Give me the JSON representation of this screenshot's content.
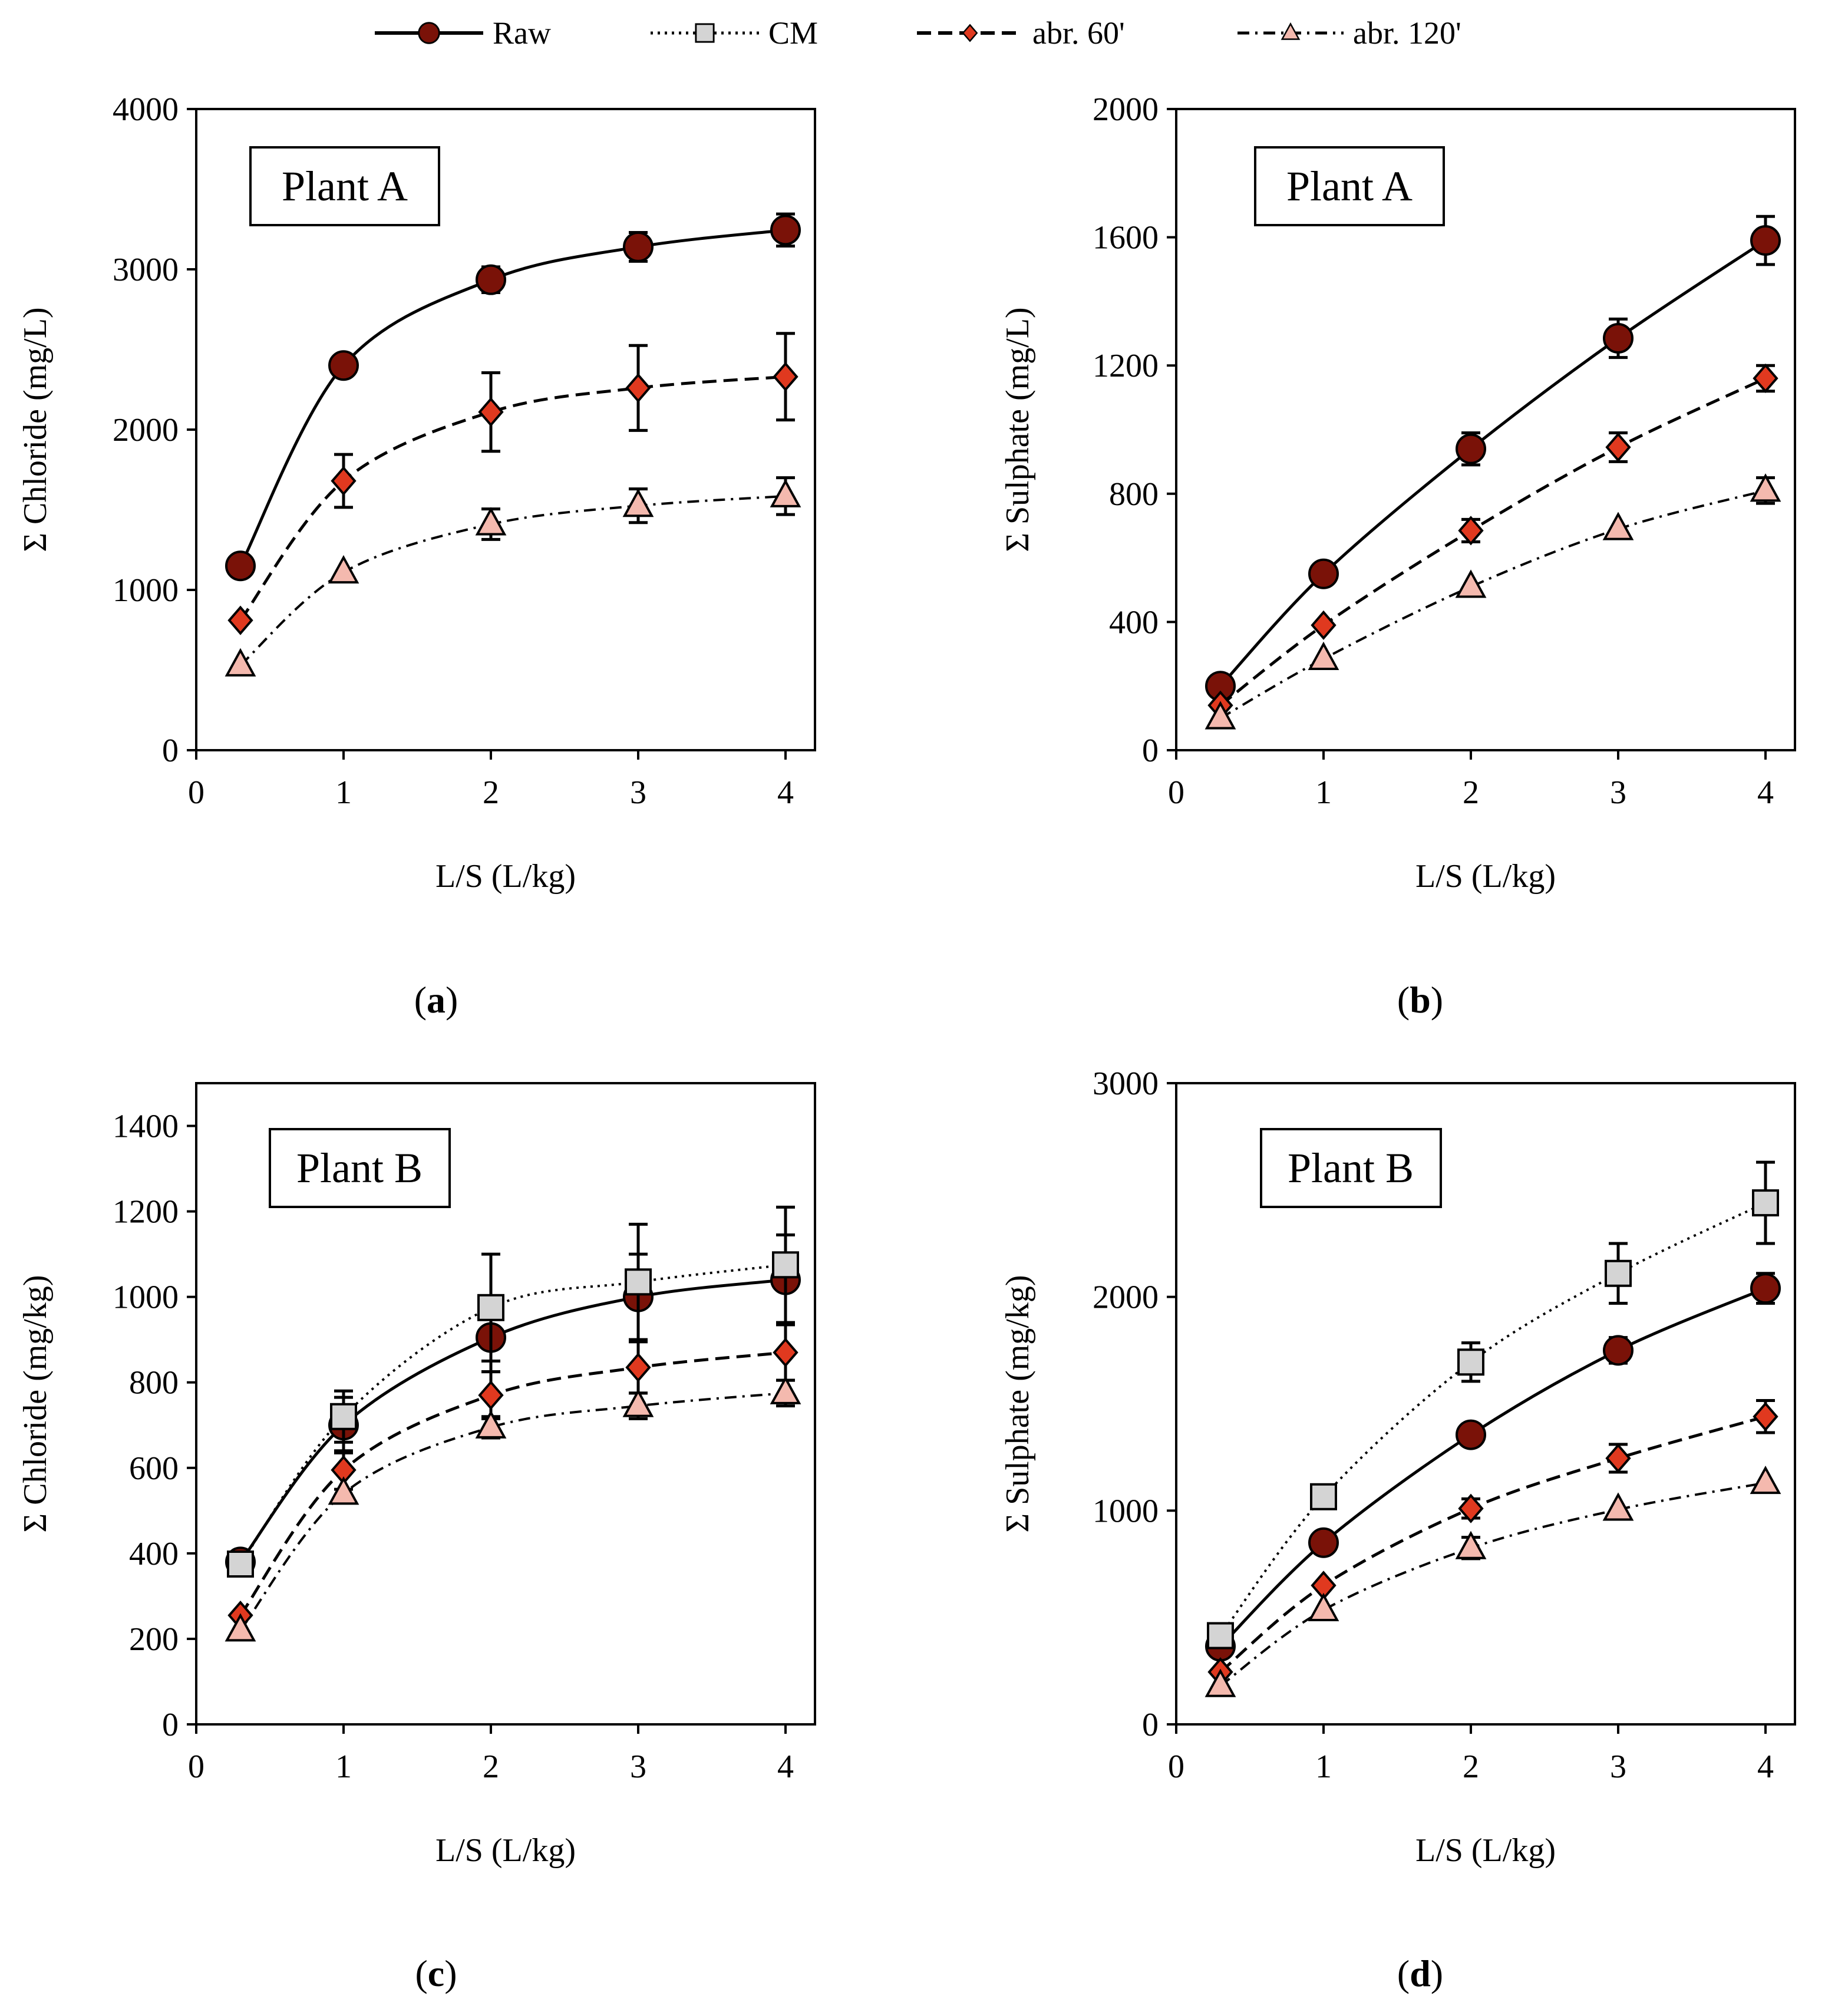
{
  "legend": [
    {
      "name": "Raw",
      "marker": "circle",
      "dash": "solid"
    },
    {
      "name": "CM",
      "marker": "square",
      "dash": "dotted"
    },
    {
      "name": "abr. 60'",
      "marker": "diamond",
      "dash": "dashed"
    },
    {
      "name": "abr. 120'",
      "marker": "triangle",
      "dash": "dashdot"
    }
  ],
  "styles": {
    "Raw": {
      "fill": "#7a1208",
      "stroke": "#000000"
    },
    "CM": {
      "fill": "#d4d4d4",
      "stroke": "#000000"
    },
    "abr. 60'": {
      "fill": "#e0391f",
      "stroke": "#000000"
    },
    "abr. 120'": {
      "fill": "#f4b9ae",
      "stroke": "#000000"
    }
  },
  "chart_data": [
    {
      "type": "line",
      "panel_label": "a",
      "plant_label": "Plant A",
      "xlabel": "L/S (L/kg)",
      "ylabel": "Σ Chloride (mg/L)",
      "xlim": [
        0,
        4.2
      ],
      "ylim": [
        0,
        4000
      ],
      "xticks": [
        0,
        1,
        2,
        3,
        4
      ],
      "yticks": [
        0,
        1000,
        2000,
        3000,
        4000
      ],
      "x": [
        0.3,
        1,
        2,
        3,
        4
      ],
      "series": [
        {
          "name": "Raw",
          "values": [
            1150,
            2400,
            2935,
            3140,
            3245
          ],
          "errors": [
            0,
            0,
            80,
            90,
            100
          ]
        },
        {
          "name": "abr. 60'",
          "values": [
            810,
            1680,
            2110,
            2260,
            2330
          ],
          "errors": [
            0,
            165,
            245,
            265,
            270
          ]
        },
        {
          "name": "abr. 120'",
          "values": [
            530,
            1110,
            1410,
            1525,
            1585
          ],
          "errors": [
            0,
            0,
            95,
            105,
            115
          ]
        }
      ]
    },
    {
      "type": "line",
      "panel_label": "b",
      "plant_label": "Plant A",
      "xlabel": "L/S (L/kg)",
      "ylabel": "Σ Sulphate (mg/L)",
      "xlim": [
        0,
        4.2
      ],
      "ylim": [
        0,
        2000
      ],
      "xticks": [
        0,
        1,
        2,
        3,
        4
      ],
      "yticks": [
        0,
        400,
        800,
        1200,
        1600,
        2000
      ],
      "x": [
        0.3,
        1,
        2,
        3,
        4
      ],
      "series": [
        {
          "name": "Raw",
          "values": [
            200,
            550,
            940,
            1285,
            1590
          ],
          "errors": [
            0,
            0,
            50,
            60,
            75
          ]
        },
        {
          "name": "abr. 60'",
          "values": [
            140,
            390,
            685,
            945,
            1160
          ],
          "errors": [
            0,
            0,
            35,
            45,
            40
          ]
        },
        {
          "name": "abr. 120'",
          "values": [
            100,
            285,
            510,
            690,
            810
          ],
          "errors": [
            0,
            0,
            0,
            0,
            40
          ]
        }
      ]
    },
    {
      "type": "line",
      "panel_label": "c",
      "plant_label": "Plant B",
      "xlabel": "L/S (L/kg)",
      "ylabel": "Σ Chloride (mg/kg)",
      "xlim": [
        0,
        4.2
      ],
      "ylim": [
        0,
        1500
      ],
      "xticks": [
        0,
        1,
        2,
        3,
        4
      ],
      "yticks": [
        0,
        200,
        400,
        600,
        800,
        1000,
        1200,
        1400
      ],
      "x": [
        0.3,
        1,
        2,
        3,
        4
      ],
      "series": [
        {
          "name": "Raw",
          "values": [
            380,
            700,
            905,
            1000,
            1040
          ],
          "errors": [
            0,
            65,
            80,
            100,
            105
          ]
        },
        {
          "name": "CM",
          "values": [
            375,
            720,
            975,
            1035,
            1075
          ],
          "errors": [
            0,
            60,
            125,
            135,
            135
          ]
        },
        {
          "name": "abr. 60'",
          "values": [
            255,
            595,
            770,
            835,
            870
          ],
          "errors": [
            0,
            45,
            55,
            60,
            65
          ]
        },
        {
          "name": "abr. 120'",
          "values": [
            220,
            540,
            695,
            745,
            775
          ],
          "errors": [
            0,
            0,
            25,
            30,
            30
          ]
        }
      ]
    },
    {
      "type": "line",
      "panel_label": "d",
      "plant_label": "Plant B",
      "xlabel": "L/S (L/kg)",
      "ylabel": "Σ Sulphate (mg/kg)",
      "xlim": [
        0,
        4.2
      ],
      "ylim": [
        0,
        3000
      ],
      "xticks": [
        0,
        1,
        2,
        3,
        4
      ],
      "yticks": [
        0,
        1000,
        2000,
        3000
      ],
      "x": [
        0.3,
        1,
        2,
        3,
        4
      ],
      "series": [
        {
          "name": "Raw",
          "values": [
            365,
            850,
            1355,
            1750,
            2040
          ],
          "errors": [
            0,
            0,
            40,
            60,
            70
          ]
        },
        {
          "name": "CM",
          "values": [
            415,
            1065,
            1695,
            2110,
            2440
          ],
          "errors": [
            0,
            0,
            90,
            140,
            190
          ]
        },
        {
          "name": "abr. 60'",
          "values": [
            245,
            650,
            1010,
            1245,
            1440
          ],
          "errors": [
            0,
            0,
            45,
            65,
            75
          ]
        },
        {
          "name": "abr. 120'",
          "values": [
            180,
            535,
            825,
            1005,
            1130
          ],
          "errors": [
            0,
            0,
            50,
            0,
            0
          ]
        }
      ]
    }
  ]
}
